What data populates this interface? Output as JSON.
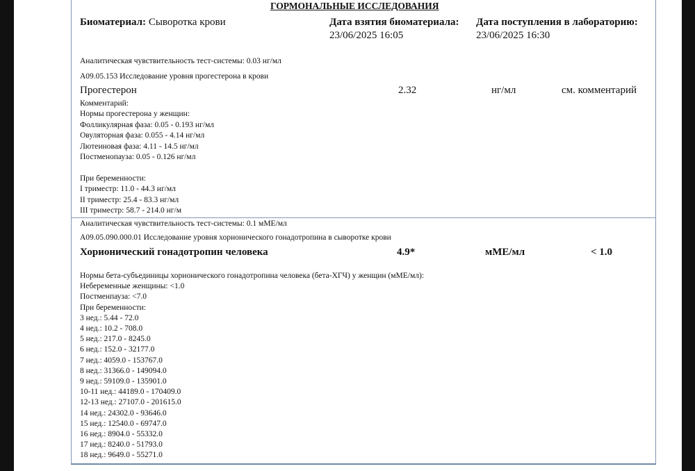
{
  "title": "ГОРМОНАЛЬНЫЕ ИССЛЕДОВАНИЯ",
  "header": {
    "biomaterial_label": "Биоматериал:",
    "biomaterial_value": "Сыворотка крови",
    "collection_label": "Дата взятия биоматериала:",
    "collection_value": "23/06/2025 16:05",
    "received_label": "Дата поступления в лабораторию:",
    "received_value": "23/06/2025 16:30"
  },
  "progesterone": {
    "sensitivity": "Аналитическая чувствительность тест-системы: 0.03 нг/мл",
    "code": "A09.05.153 Исследование уровня прогестерона в крови",
    "name": "Прогестерон",
    "value": "2.32",
    "unit": "нг/мл",
    "reference": "см. комментарий",
    "comment_lines": [
      "Комментарий:",
      "Нормы прогестерона у женщин:",
      "Фолликулярная фаза: 0.05 - 0.193 нг/мл",
      "Овуляторная фаза: 0.055 - 4.14 нг/мл",
      "Лютеиновая фаза: 4.11 - 14.5 нг/мл",
      "Постменопауза: 0.05 - 0.126 нг/мл",
      "",
      "При беременности:",
      "I триместр: 11.0 - 44.3 нг/мл",
      "II триместр: 25.4 - 83.3 нг/мл",
      "III триместр: 58.7 - 214.0 нг/м"
    ]
  },
  "hcg": {
    "sensitivity": "Аналитическая чувствительность тест-системы: 0.1 мМЕ/мл",
    "code": "A09.05.090.000.01   Исследование уровня хорионического гонадотропина в сыворотке крови",
    "name": "Хорионический гонадотропин человека",
    "value": "4.9*",
    "unit": "мМЕ/мл",
    "reference": "< 1.0",
    "norm_lines": [
      "Нормы бета-субъединицы хорионического гонадотропина человека (бета-ХГЧ) у женщин (мМЕ/мл):",
      "Небеременные женщины: <1.0",
      "Постменпауза: <7.0",
      "При беременности:",
      "3 нед.: 5.44 - 72.0",
      "4 нед.: 10.2 - 708.0",
      "5 нед.: 217.0 - 8245.0",
      "6 нед.: 152.0 - 32177.0",
      "7 нед.: 4059.0 - 153767.0",
      "8 нед.: 31366.0 - 149094.0",
      "9 нед.: 59109.0 - 135901.0",
      "10-11 нед.: 44189.0 - 170409.0",
      "12-13 нед.: 27107.0 - 201615.0",
      "14 нед.: 24302.0 - 93646.0",
      "15 нед.: 12540.0 - 69747.0",
      "16 нед.: 8904.0 - 55332.0",
      "17 нед.: 8240.0 - 51793.0",
      "18 нед.: 9649.0 - 55271.0"
    ]
  }
}
